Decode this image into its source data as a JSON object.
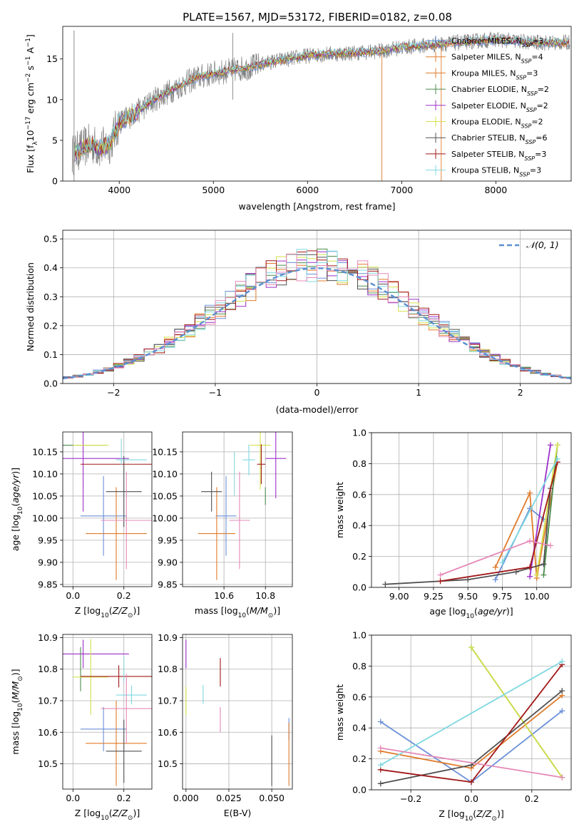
{
  "figure_title": "PLATE=1567, MJD=53172, FIBERID=0182, z=0.08",
  "models": [
    {
      "label": "Chabrier MILES, N",
      "sub": "SSP",
      "n": "=3",
      "color": "#6a8fd8"
    },
    {
      "label": "Salpeter MILES, N",
      "sub": "SSP",
      "n": "=4",
      "color": "#e07b2a"
    },
    {
      "label": "Kroupa MILES, N",
      "sub": "SSP",
      "n": "=3",
      "color": "#e07b2a"
    },
    {
      "label": "Chabrier ELODIE, N",
      "sub": "SSP",
      "n": "=2",
      "color": "#4c8c4c"
    },
    {
      "label": "Salpeter ELODIE, N",
      "sub": "SSP",
      "n": "=2",
      "color": "#9b30c8"
    },
    {
      "label": "Kroupa ELODIE, N",
      "sub": "SSP",
      "n": "=2",
      "color": "#d4e04a"
    },
    {
      "label": "Chabrier STELIB, N",
      "sub": "SSP",
      "n": "=6",
      "color": "#505050"
    },
    {
      "label": "Salpeter STELIB, N",
      "sub": "SSP",
      "n": "=3",
      "color": "#a01818"
    },
    {
      "label": "Kroupa STELIB, N",
      "sub": "SSP",
      "n": "=3",
      "color": "#7fd8e0"
    }
  ],
  "chart_data": [
    {
      "id": "spectrum",
      "type": "line",
      "xlabel": "wavelength [Angstrom, rest frame]",
      "ylabel_parts": [
        "Flux [f",
        "λ",
        "10",
        "−17",
        " erg cm",
        "−2",
        " s",
        "−1",
        " A",
        "−1",
        "]"
      ],
      "xlim": [
        3400,
        8800
      ],
      "ylim": [
        0,
        19
      ],
      "xticks": [
        4000,
        5000,
        6000,
        7000,
        8000
      ],
      "yticks": [
        0,
        5,
        10,
        15
      ],
      "grid": false,
      "legend": "top-right",
      "spectrum_anchors_x": [
        3500,
        3600,
        3700,
        3800,
        3900,
        4000,
        4200,
        4400,
        4600,
        4800,
        5000,
        5200,
        5400,
        5600,
        5800,
        6000,
        6200,
        6400,
        6600,
        6800,
        7000,
        7200,
        7400,
        7600,
        7800,
        8000,
        8200,
        8400
      ],
      "spectrum_anchors_y": [
        3.2,
        4.0,
        4.6,
        4.0,
        4.6,
        7.2,
        8.6,
        10.2,
        11.4,
        12.6,
        13.2,
        13.6,
        14.0,
        14.6,
        15.0,
        15.4,
        15.6,
        15.7,
        15.8,
        16.0,
        16.4,
        16.6,
        16.8,
        17.0,
        17.2,
        17.4,
        17.2,
        17.0
      ]
    },
    {
      "id": "residuals",
      "type": "step",
      "xlabel": "(data-model)/error",
      "ylabel": "Normed distribution",
      "xlim": [
        -2.5,
        2.5
      ],
      "ylim": [
        0,
        0.53
      ],
      "xticks": [
        -2,
        -1,
        0,
        1,
        2
      ],
      "yticks": [
        0,
        0.1,
        0.2,
        0.3,
        0.4,
        0.5
      ],
      "grid": true,
      "legend": "top-right",
      "reference_label": "𝒩(0, 1)",
      "bin_width": 0.1
    },
    {
      "id": "age_vs_Z",
      "type": "errorbar",
      "xlabel": "Z [log10(Z/Z⊙)]",
      "ylabel": "age [log10(age/yr)]",
      "xlim": [
        -0.04,
        0.31
      ],
      "ylim": [
        9.845,
        10.195
      ],
      "xticks": [
        0.0,
        0.2
      ],
      "yticks": [
        9.85,
        9.9,
        9.95,
        10.0,
        10.05,
        10.1,
        10.15
      ],
      "points": [
        {
          "model": 0,
          "x": 0.12,
          "y": 10.005,
          "xerr": 0.09,
          "yerr": 0.09
        },
        {
          "model": 1,
          "x": 0.17,
          "y": 9.965,
          "xerr": 0.12,
          "yerr": 0.105
        },
        {
          "model": 3,
          "x": 0.03,
          "y": 10.165,
          "xerr": 0.0,
          "yerr": 0.0
        },
        {
          "model": 4,
          "x": 0.04,
          "y": 10.135,
          "xerr": 0.18,
          "yerr": 0.12
        },
        {
          "model": 5,
          "x": 0.07,
          "y": 10.165,
          "xerr": 0.07,
          "yerr": 0.0
        },
        {
          "model": 6,
          "x": 0.2,
          "y": 10.06,
          "xerr": 0.07,
          "yerr": 0.08
        },
        {
          "model": 7,
          "x": 0.18,
          "y": 10.122,
          "xerr": 0.15,
          "yerr": 0.0
        },
        {
          "model": 8,
          "x": 0.23,
          "y": 10.132,
          "xerr": 0.06,
          "yerr": 0.0
        },
        {
          "model": 9,
          "x": 0.21,
          "y": 9.995,
          "xerr": 0.1,
          "yerr": 0.11
        },
        {
          "model": 10,
          "x": 0.19,
          "y": 10.15,
          "xerr": 0.0,
          "yerr": 0.03
        }
      ]
    },
    {
      "id": "age_vs_mass",
      "type": "errorbar",
      "xlabel": "mass [log10(M/M⊙)]",
      "ylabel": "",
      "xlim": [
        10.4,
        10.93
      ],
      "ylim": [
        9.845,
        10.195
      ],
      "xticks": [
        10.6,
        10.8
      ],
      "yticks": [
        9.85,
        9.9,
        9.95,
        10.0,
        10.05,
        10.1,
        10.15
      ],
      "points": [
        {
          "model": 0,
          "x": 10.61,
          "y": 10.005,
          "xerr": 0.05,
          "yerr": 0.09
        },
        {
          "model": 1,
          "x": 10.565,
          "y": 9.965,
          "xerr": 0.09,
          "yerr": 0.105
        },
        {
          "model": 3,
          "x": 10.8,
          "y": 10.05,
          "xerr": 0.0,
          "yerr": 0.02
        },
        {
          "model": 4,
          "x": 10.85,
          "y": 10.135,
          "xerr": 0.05,
          "yerr": 0.09
        },
        {
          "model": 5,
          "x": 10.775,
          "y": 10.165,
          "xerr": 0.05,
          "yerr": 0.1
        },
        {
          "model": 6,
          "x": 10.54,
          "y": 10.06,
          "xerr": 0.05,
          "yerr": 0.045
        },
        {
          "model": 7,
          "x": 10.78,
          "y": 10.122,
          "xerr": 0.02,
          "yerr": 0.045
        },
        {
          "model": 8,
          "x": 10.72,
          "y": 10.132,
          "xerr": 0.03,
          "yerr": 0.035
        },
        {
          "model": 9,
          "x": 10.675,
          "y": 9.995,
          "xerr": 0.05,
          "yerr": 0.11
        },
        {
          "model": 10,
          "x": 10.65,
          "y": 10.1,
          "xerr": 0.0,
          "yerr": 0.05
        }
      ]
    },
    {
      "id": "mass_vs_Z",
      "type": "errorbar",
      "xlabel": "Z [log10(Z/Z⊙)]",
      "ylabel": "mass [log10(M/M⊙)]",
      "xlim": [
        -0.04,
        0.31
      ],
      "ylim": [
        10.42,
        10.91
      ],
      "xticks": [
        0.0,
        0.2
      ],
      "yticks": [
        10.5,
        10.6,
        10.7,
        10.8,
        10.9
      ],
      "points": [
        {
          "model": 0,
          "x": 0.12,
          "y": 10.61,
          "xerr": 0.09,
          "yerr": 0.07
        },
        {
          "model": 1,
          "x": 0.17,
          "y": 10.565,
          "xerr": 0.12,
          "yerr": 0.135
        },
        {
          "model": 3,
          "x": 0.03,
          "y": 10.8,
          "xerr": 0.0,
          "yerr": 0.07
        },
        {
          "model": 4,
          "x": 0.04,
          "y": 10.848,
          "xerr": 0.18,
          "yerr": 0.045
        },
        {
          "model": 5,
          "x": 0.07,
          "y": 10.775,
          "xerr": 0.07,
          "yerr": 0.12
        },
        {
          "model": 6,
          "x": 0.2,
          "y": 10.54,
          "xerr": 0.07,
          "yerr": 0.1
        },
        {
          "model": 7,
          "x": 0.18,
          "y": 10.777,
          "xerr": 0.15,
          "yerr": 0.035
        },
        {
          "model": 8,
          "x": 0.23,
          "y": 10.718,
          "xerr": 0.06,
          "yerr": 0.03
        },
        {
          "model": 9,
          "x": 0.21,
          "y": 10.675,
          "xerr": 0.1,
          "yerr": 0.11
        },
        {
          "model": 10,
          "x": 0.2,
          "y": 10.8,
          "xerr": 0.0,
          "yerr": 0.04
        }
      ]
    },
    {
      "id": "mass_vs_EBV",
      "type": "errorbar",
      "xlabel": "E(B-V)",
      "ylabel": "",
      "xlim": [
        -0.002,
        0.062
      ],
      "ylim": [
        10.42,
        10.91
      ],
      "xticks": [
        0.0,
        0.025,
        0.05
      ],
      "yticks": [
        10.5,
        10.6,
        10.7,
        10.8,
        10.9
      ],
      "points": [
        {
          "model": 0,
          "x": 0.06,
          "y": 10.61,
          "xerr": 0.0,
          "yerr": 0.035
        },
        {
          "model": 1,
          "x": 0.06,
          "y": 10.53,
          "xerr": 0.0,
          "yerr": 0.1
        },
        {
          "model": 4,
          "x": 0.0,
          "y": 10.848,
          "xerr": 0.0,
          "yerr": 0.045
        },
        {
          "model": 5,
          "x": 0.0,
          "y": 10.7,
          "xerr": 0.0,
          "yerr": 0.045
        },
        {
          "model": 6,
          "x": 0.05,
          "y": 10.51,
          "xerr": 0.0,
          "yerr": 0.08
        },
        {
          "model": 7,
          "x": 0.02,
          "y": 10.79,
          "xerr": 0.0,
          "yerr": 0.045
        },
        {
          "model": 8,
          "x": 0.01,
          "y": 10.72,
          "xerr": 0.0,
          "yerr": 0.03
        },
        {
          "model": 9,
          "x": 0.02,
          "y": 10.64,
          "xerr": 0.0,
          "yerr": 0.04
        }
      ]
    },
    {
      "id": "weight_vs_age",
      "type": "line",
      "xlabel": "age [log10(age/yr)]",
      "ylabel": "mass weight",
      "xlim": [
        8.8,
        10.25
      ],
      "ylim": [
        0,
        1.0
      ],
      "xticks": [
        9.0,
        9.25,
        9.5,
        9.75,
        10.0
      ],
      "yticks": [
        0.0,
        0.2,
        0.4,
        0.6,
        0.8,
        1.0
      ],
      "grid": true,
      "series": [
        {
          "model": 0,
          "x": [
            9.7,
            9.95,
            10.05
          ],
          "y": [
            0.05,
            0.51,
            0.44
          ]
        },
        {
          "model": 1,
          "x": [
            9.7,
            9.95,
            10.0,
            10.15
          ],
          "y": [
            0.13,
            0.61,
            0.06,
            0.81
          ]
        },
        {
          "model": 3,
          "x": [
            10.05,
            10.15
          ],
          "y": [
            0.08,
            0.92
          ]
        },
        {
          "model": 4,
          "x": [
            9.95,
            10.1
          ],
          "y": [
            0.07,
            0.92
          ]
        },
        {
          "model": 5,
          "x": [
            10.0,
            10.15
          ],
          "y": [
            0.08,
            0.92
          ]
        },
        {
          "model": 6,
          "x": [
            8.9,
            9.5,
            9.85,
            10.05,
            10.1
          ],
          "y": [
            0.02,
            0.05,
            0.1,
            0.15,
            0.64
          ]
        },
        {
          "model": 7,
          "x": [
            9.3,
            9.95,
            10.15
          ],
          "y": [
            0.04,
            0.13,
            0.81
          ]
        },
        {
          "model": 8,
          "x": [
            9.75,
            10.15
          ],
          "y": [
            0.16,
            0.83
          ]
        },
        {
          "model": 9,
          "x": [
            9.3,
            9.95,
            10.1
          ],
          "y": [
            0.08,
            0.3,
            0.27
          ]
        }
      ]
    },
    {
      "id": "weight_vs_Z",
      "type": "line",
      "xlabel": "Z [log10(Z/Z⊙)]",
      "ylabel": "mass weight",
      "xlim": [
        -0.33,
        0.33
      ],
      "ylim": [
        0,
        1.0
      ],
      "xticks": [
        -0.2,
        0.0,
        0.2
      ],
      "yticks": [
        0.0,
        0.2,
        0.4,
        0.6,
        0.8,
        1.0
      ],
      "grid": true,
      "series": [
        {
          "model": 0,
          "x": [
            -0.3,
            0.0,
            0.3
          ],
          "y": [
            0.44,
            0.05,
            0.51
          ]
        },
        {
          "model": 1,
          "x": [
            -0.3,
            0.0,
            0.3
          ],
          "y": [
            0.25,
            0.14,
            0.61
          ]
        },
        {
          "model": 3,
          "x": [
            0.0,
            0.3
          ],
          "y": [
            0.92,
            0.08
          ]
        },
        {
          "model": 5,
          "x": [
            0.0,
            0.3
          ],
          "y": [
            0.92,
            0.08
          ]
        },
        {
          "model": 6,
          "x": [
            -0.3,
            0.0,
            0.3
          ],
          "y": [
            0.04,
            0.16,
            0.64
          ]
        },
        {
          "model": 7,
          "x": [
            -0.3,
            0.0,
            0.3
          ],
          "y": [
            0.13,
            0.05,
            0.81
          ]
        },
        {
          "model": 8,
          "x": [
            -0.3,
            0.3
          ],
          "y": [
            0.16,
            0.83
          ]
        },
        {
          "model": 9,
          "x": [
            -0.3,
            0.3
          ],
          "y": [
            0.27,
            0.08
          ]
        }
      ]
    }
  ],
  "point_colors": [
    "#6a8fd8",
    "#e07b2a",
    "#e07b2a",
    "#4c8c4c",
    "#9b30c8",
    "#d4e04a",
    "#505050",
    "#a01818",
    "#7fd8e0",
    "#e589b8",
    "#8ad6de"
  ]
}
